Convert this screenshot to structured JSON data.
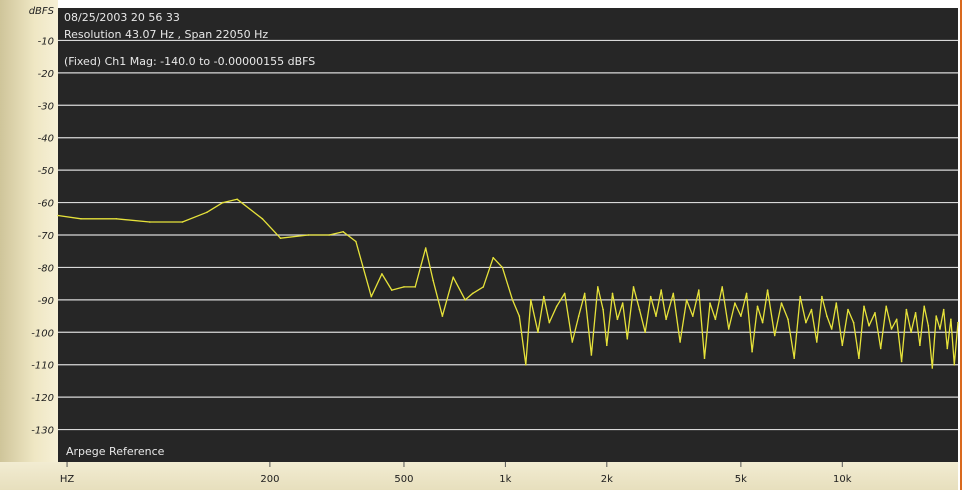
{
  "header": {
    "timestamp": "08/25/2003 20 56 33",
    "resolution": "Resolution 43.07 Hz , Span 22050 Hz",
    "mag_range": "(Fixed) Ch1 Mag: -140.0 to -0.00000155 dBFS"
  },
  "footer": {
    "reference_label": "Arpege Reference"
  },
  "colors": {
    "background": "#262626",
    "grid": "#d8d8d8",
    "trace": "#e6e23a"
  },
  "chart_data": {
    "type": "line",
    "title": "",
    "xlabel": "",
    "ylabel": "dBFS",
    "x_scale": "log",
    "xlim": [
      47,
      22050
    ],
    "ylim": [
      -140,
      0
    ],
    "grid": true,
    "y_ticks": [
      {
        "value": 0,
        "label": "dBFS"
      },
      {
        "value": -10,
        "label": "-10"
      },
      {
        "value": -20,
        "label": "-20"
      },
      {
        "value": -30,
        "label": "-30"
      },
      {
        "value": -40,
        "label": "-40"
      },
      {
        "value": -50,
        "label": "-50"
      },
      {
        "value": -60,
        "label": "-60"
      },
      {
        "value": -70,
        "label": "-70"
      },
      {
        "value": -80,
        "label": "-80"
      },
      {
        "value": -90,
        "label": "-90"
      },
      {
        "value": -100,
        "label": "-100"
      },
      {
        "value": -110,
        "label": "-110"
      },
      {
        "value": -120,
        "label": "-120"
      },
      {
        "value": -130,
        "label": "-130"
      }
    ],
    "x_ticks": [
      {
        "value": 50,
        "label": "HZ"
      },
      {
        "value": 200,
        "label": "200"
      },
      {
        "value": 500,
        "label": "500"
      },
      {
        "value": 1000,
        "label": "1k"
      },
      {
        "value": 2000,
        "label": "2k"
      },
      {
        "value": 5000,
        "label": "5k"
      },
      {
        "value": 10000,
        "label": "10k"
      }
    ],
    "series": [
      {
        "x": [
          47,
          55,
          70,
          88,
          110,
          130,
          145,
          160,
          190,
          215,
          260,
          300,
          330,
          360,
          400,
          430,
          460,
          500,
          540,
          580,
          610,
          650,
          700,
          760,
          800,
          860,
          920,
          980,
          1050,
          1100,
          1150,
          1190,
          1250,
          1300,
          1350,
          1420,
          1500,
          1580,
          1650,
          1720,
          1800,
          1880,
          1950,
          2000,
          2080,
          2150,
          2230,
          2300,
          2400,
          2500,
          2600,
          2700,
          2800,
          2900,
          3000,
          3150,
          3300,
          3450,
          3600,
          3750,
          3900,
          4050,
          4200,
          4400,
          4600,
          4800,
          5000,
          5200,
          5400,
          5600,
          5800,
          6000,
          6300,
          6600,
          6900,
          7200,
          7500,
          7800,
          8100,
          8400,
          8700,
          9000,
          9300,
          9600,
          10000,
          10400,
          10800,
          11200,
          11600,
          12000,
          12500,
          13000,
          13500,
          14000,
          14500,
          15000,
          15500,
          16000,
          16500,
          17000,
          17500,
          18000,
          18500,
          19000,
          19500,
          20000,
          20500,
          21000,
          21500,
          22050
        ],
        "y": [
          -64,
          -65,
          -65,
          -66,
          -66,
          -63,
          -60,
          -59,
          -65,
          -71,
          -70,
          -70,
          -69,
          -72,
          -89,
          -82,
          -87,
          -86,
          -86,
          -74,
          -84,
          -95,
          -83,
          -90,
          -88,
          -86,
          -77,
          -80,
          -90,
          -95,
          -110,
          -90,
          -100,
          -89,
          -97,
          -92,
          -88,
          -103,
          -95,
          -88,
          -107,
          -86,
          -93,
          -104,
          -88,
          -96,
          -91,
          -102,
          -86,
          -93,
          -100,
          -89,
          -95,
          -87,
          -96,
          -88,
          -103,
          -90,
          -95,
          -87,
          -108,
          -91,
          -96,
          -86,
          -99,
          -91,
          -95,
          -88,
          -106,
          -92,
          -97,
          -87,
          -101,
          -91,
          -96,
          -108,
          -89,
          -97,
          -93,
          -103,
          -89,
          -95,
          -99,
          -91,
          -104,
          -93,
          -97,
          -108,
          -92,
          -98,
          -94,
          -105,
          -92,
          -99,
          -96,
          -109,
          -93,
          -100,
          -94,
          -104,
          -92,
          -98,
          -111,
          -95,
          -99,
          -93,
          -105,
          -96,
          -110,
          -97
        ]
      }
    ]
  }
}
